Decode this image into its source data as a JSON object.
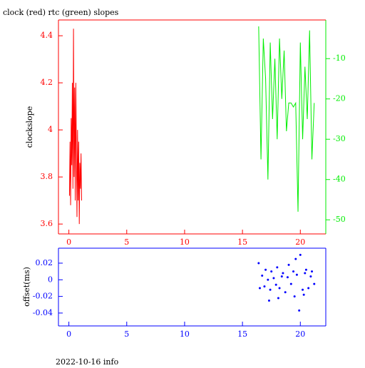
{
  "chart_data": [
    {
      "type": "line",
      "title": "clock (red) rtc (green) slopes",
      "y_label": "clockslope",
      "xlim": [
        -0.9,
        22.2
      ],
      "xticks": [
        0,
        5,
        10,
        15,
        20
      ],
      "ylim": [
        3.558,
        4.467
      ],
      "yticks": [
        4.4,
        4.2,
        4,
        3.8,
        3.6
      ],
      "y2lim": [
        -53.5,
        -0.4
      ],
      "y2ticks": [
        -10,
        -20,
        -30,
        -40,
        -50
      ],
      "series": [
        {
          "color": "#ff0000",
          "axis": "y",
          "x": [
            0.05,
            0.1,
            0.15,
            0.2,
            0.25,
            0.3,
            0.35,
            0.4,
            0.45,
            0.5,
            0.55,
            0.6,
            0.65,
            0.7,
            0.75,
            0.8,
            0.85,
            0.9,
            0.95,
            1.0,
            1.05,
            1.1
          ],
          "values": [
            3.72,
            3.95,
            3.68,
            4.05,
            3.85,
            4.2,
            3.75,
            4.43,
            3.8,
            4.18,
            3.7,
            4.2,
            3.9,
            3.63,
            4.0,
            3.7,
            3.95,
            3.6,
            3.86,
            3.75,
            3.9,
            3.7
          ]
        },
        {
          "color": "#00ee00",
          "axis": "y2",
          "x": [
            16.4,
            16.6,
            16.8,
            17.0,
            17.2,
            17.4,
            17.6,
            17.8,
            18.0,
            18.2,
            18.4,
            18.6,
            18.8,
            19.0,
            19.2,
            19.4,
            19.6,
            19.8,
            20.0,
            20.2,
            20.4,
            20.6,
            20.8,
            21.0,
            21.2
          ],
          "values": [
            -2,
            -35,
            -5,
            -15,
            -40,
            -6,
            -25,
            -10,
            -30,
            -5,
            -20,
            -8,
            -28,
            -21,
            -21,
            -22,
            -21,
            -48,
            -6,
            -30,
            -12,
            -25,
            -3,
            -35,
            -21
          ]
        }
      ]
    },
    {
      "type": "scatter",
      "y_label": "offset(ms)",
      "footer": "2022-10-16 info",
      "xlim": [
        -0.9,
        22.2
      ],
      "xticks": [
        0,
        5,
        10,
        15,
        20
      ],
      "ylim": [
        -0.0555,
        0.038
      ],
      "yticks": [
        0.02,
        0,
        -0.02,
        -0.04
      ],
      "series": [
        {
          "color": "#0000ff",
          "x": [
            16.4,
            16.5,
            16.7,
            16.9,
            17.0,
            17.2,
            17.4,
            17.5,
            17.7,
            17.9,
            18.0,
            18.2,
            18.4,
            18.5,
            18.7,
            18.9,
            19.0,
            19.2,
            19.4,
            19.5,
            19.7,
            19.9,
            20.0,
            20.2,
            20.4,
            20.5,
            20.7,
            20.9,
            21.0,
            21.2,
            18.1,
            19.6,
            20.3,
            17.3
          ],
          "values": [
            0.02,
            -0.01,
            0.005,
            -0.008,
            0.012,
            0.0,
            -0.012,
            0.01,
            0.002,
            -0.006,
            0.015,
            -0.01,
            0.004,
            0.008,
            -0.015,
            0.003,
            0.018,
            -0.005,
            0.01,
            -0.02,
            0.006,
            -0.037,
            0.03,
            -0.012,
            0.008,
            0.012,
            -0.01,
            0.004,
            0.01,
            -0.005,
            -0.022,
            0.025,
            -0.018,
            -0.025
          ]
        }
      ]
    }
  ]
}
